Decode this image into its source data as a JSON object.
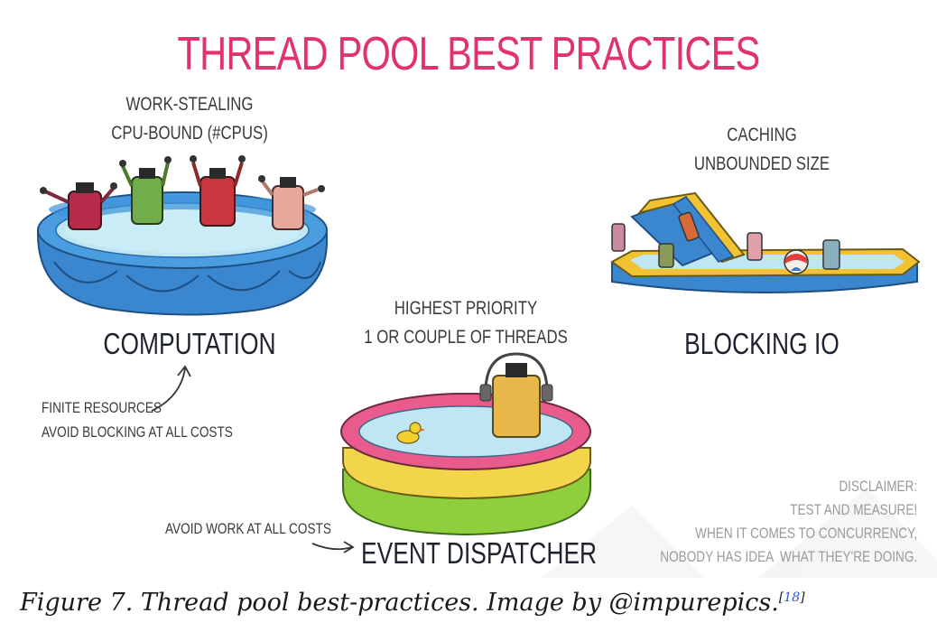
{
  "title": "THREAD POOL BEST PRACTICES",
  "computation": {
    "note_line1": "WORK-STEALING",
    "note_line2": "CPU-BOUND (#CPUS)",
    "label": "COMPUTATION",
    "side_note_line1": "FINITE RESOURCES",
    "side_note_line2": "AVOID BLOCKING AT ALL COSTS"
  },
  "blocking_io": {
    "note_line1": "CACHING",
    "note_line2": "UNBOUNDED SIZE",
    "label": "BLOCKING IO"
  },
  "event_dispatcher": {
    "note_line1": "HIGHEST PRIORITY",
    "note_line2": "1 OR COUPLE OF THREADS",
    "label": "EVENT DISPATCHER",
    "side_note": "AVOID WORK AT ALL COSTS"
  },
  "disclaimer": {
    "line1": "DISCLAIMER:",
    "line2": "TEST AND MEASURE!",
    "line3": "WHEN IT COMES TO CONCURRENCY,",
    "line4": "NOBODY HAS IDEA  WHAT THEY'RE DOING."
  },
  "caption": {
    "text": "Figure 7. Thread pool best-practices. Image by @impurepics.",
    "ref_open": "[",
    "ref_number": "18",
    "ref_close": "]"
  },
  "colors": {
    "title": "#e0336c",
    "pool_blue": "#3a8fd6",
    "water": "#bfe6f2",
    "pool_pink": "#e95b8d",
    "pool_yellow": "#f2d54a",
    "pool_green": "#8fcf3d"
  }
}
